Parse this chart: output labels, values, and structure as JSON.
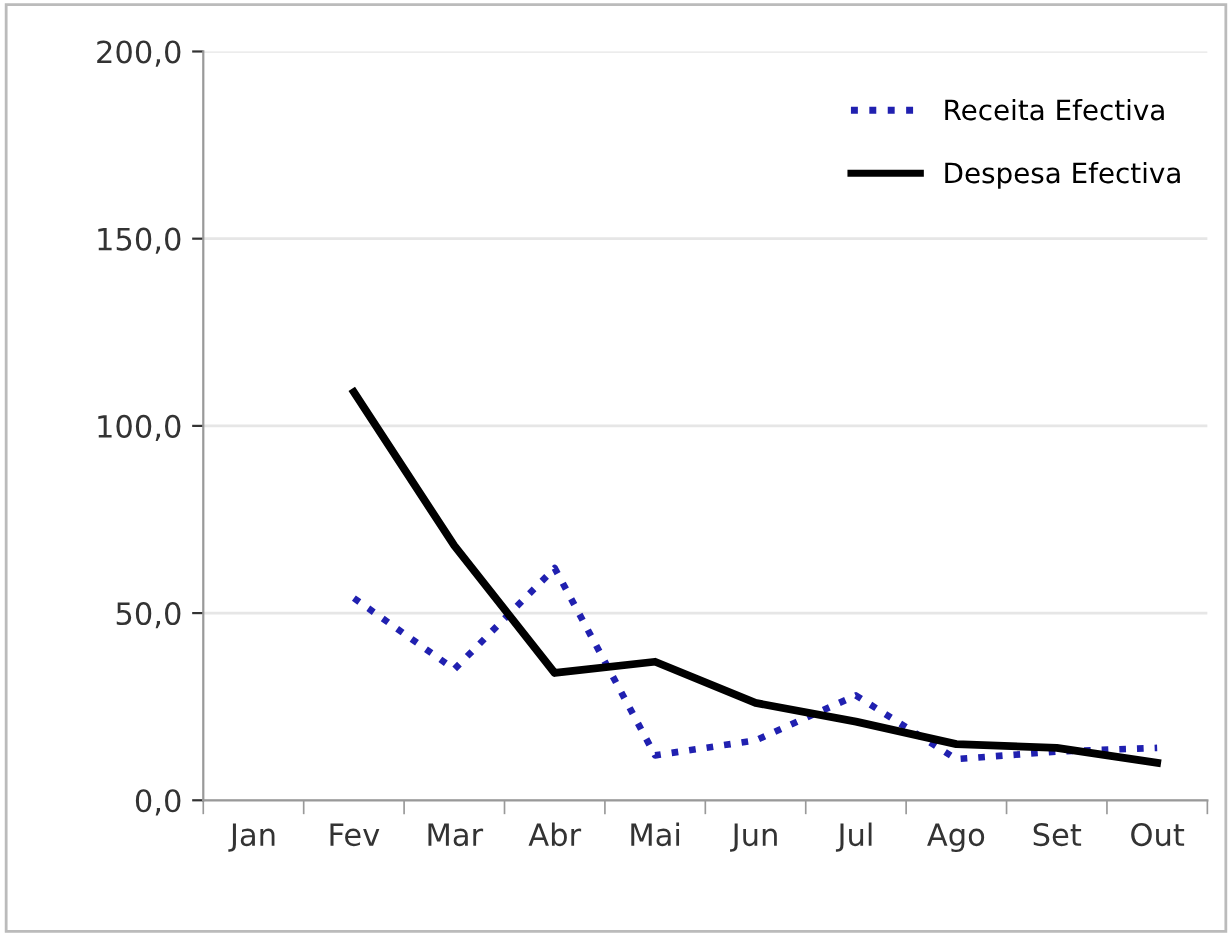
{
  "chart_data": {
    "type": "line",
    "categories": [
      "Jan",
      "Fev",
      "Mar",
      "Abr",
      "Mai",
      "Jun",
      "Jul",
      "Ago",
      "Set",
      "Out"
    ],
    "series": [
      {
        "name": "Receita Efectiva",
        "color": "#2020b0",
        "line_style": "dotted",
        "values": [
          null,
          54,
          35,
          62,
          12,
          16,
          28,
          11,
          13,
          14
        ]
      },
      {
        "name": "Despesa Efectiva",
        "color": "#000000",
        "line_style": "solid",
        "values": [
          null,
          109,
          68,
          34,
          37,
          26,
          21,
          15,
          14,
          10
        ]
      }
    ],
    "ylim": [
      0,
      200
    ],
    "yticks": [
      {
        "value": 0,
        "label": "0,0"
      },
      {
        "value": 50,
        "label": "50,0"
      },
      {
        "value": 100,
        "label": "100,0"
      },
      {
        "value": 150,
        "label": "150,0"
      },
      {
        "value": 200,
        "label": "200,0"
      }
    ],
    "grid": "y",
    "legend": "top right",
    "marker": "none"
  }
}
